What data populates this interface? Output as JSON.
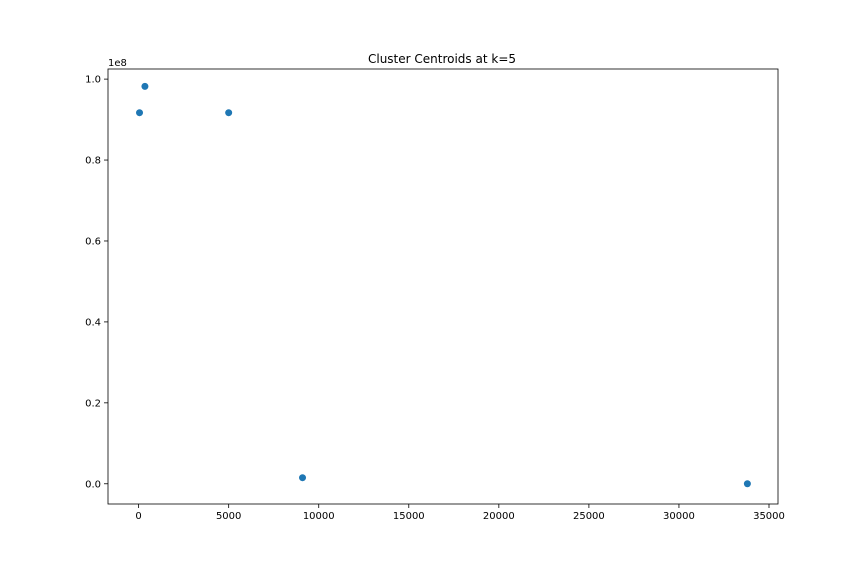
{
  "chart_data": {
    "type": "scatter",
    "title": "Cluster Centroids at k=5",
    "xlabel": "",
    "ylabel": "",
    "y_offset_label": "1e8",
    "xlim": [
      -1700,
      35500
    ],
    "ylim": [
      -0.05,
      1.025
    ],
    "x_ticks": [
      0,
      5000,
      10000,
      15000,
      20000,
      25000,
      30000,
      35000
    ],
    "y_ticks": [
      0.0,
      0.2,
      0.4,
      0.6,
      0.8,
      1.0
    ],
    "grid": false,
    "color": "#1f77b4",
    "points": [
      {
        "x": 50,
        "y": 0.917
      },
      {
        "x": 350,
        "y": 0.982
      },
      {
        "x": 5000,
        "y": 0.917
      },
      {
        "x": 9100,
        "y": 0.015
      },
      {
        "x": 33800,
        "y": 0.0
      }
    ]
  }
}
